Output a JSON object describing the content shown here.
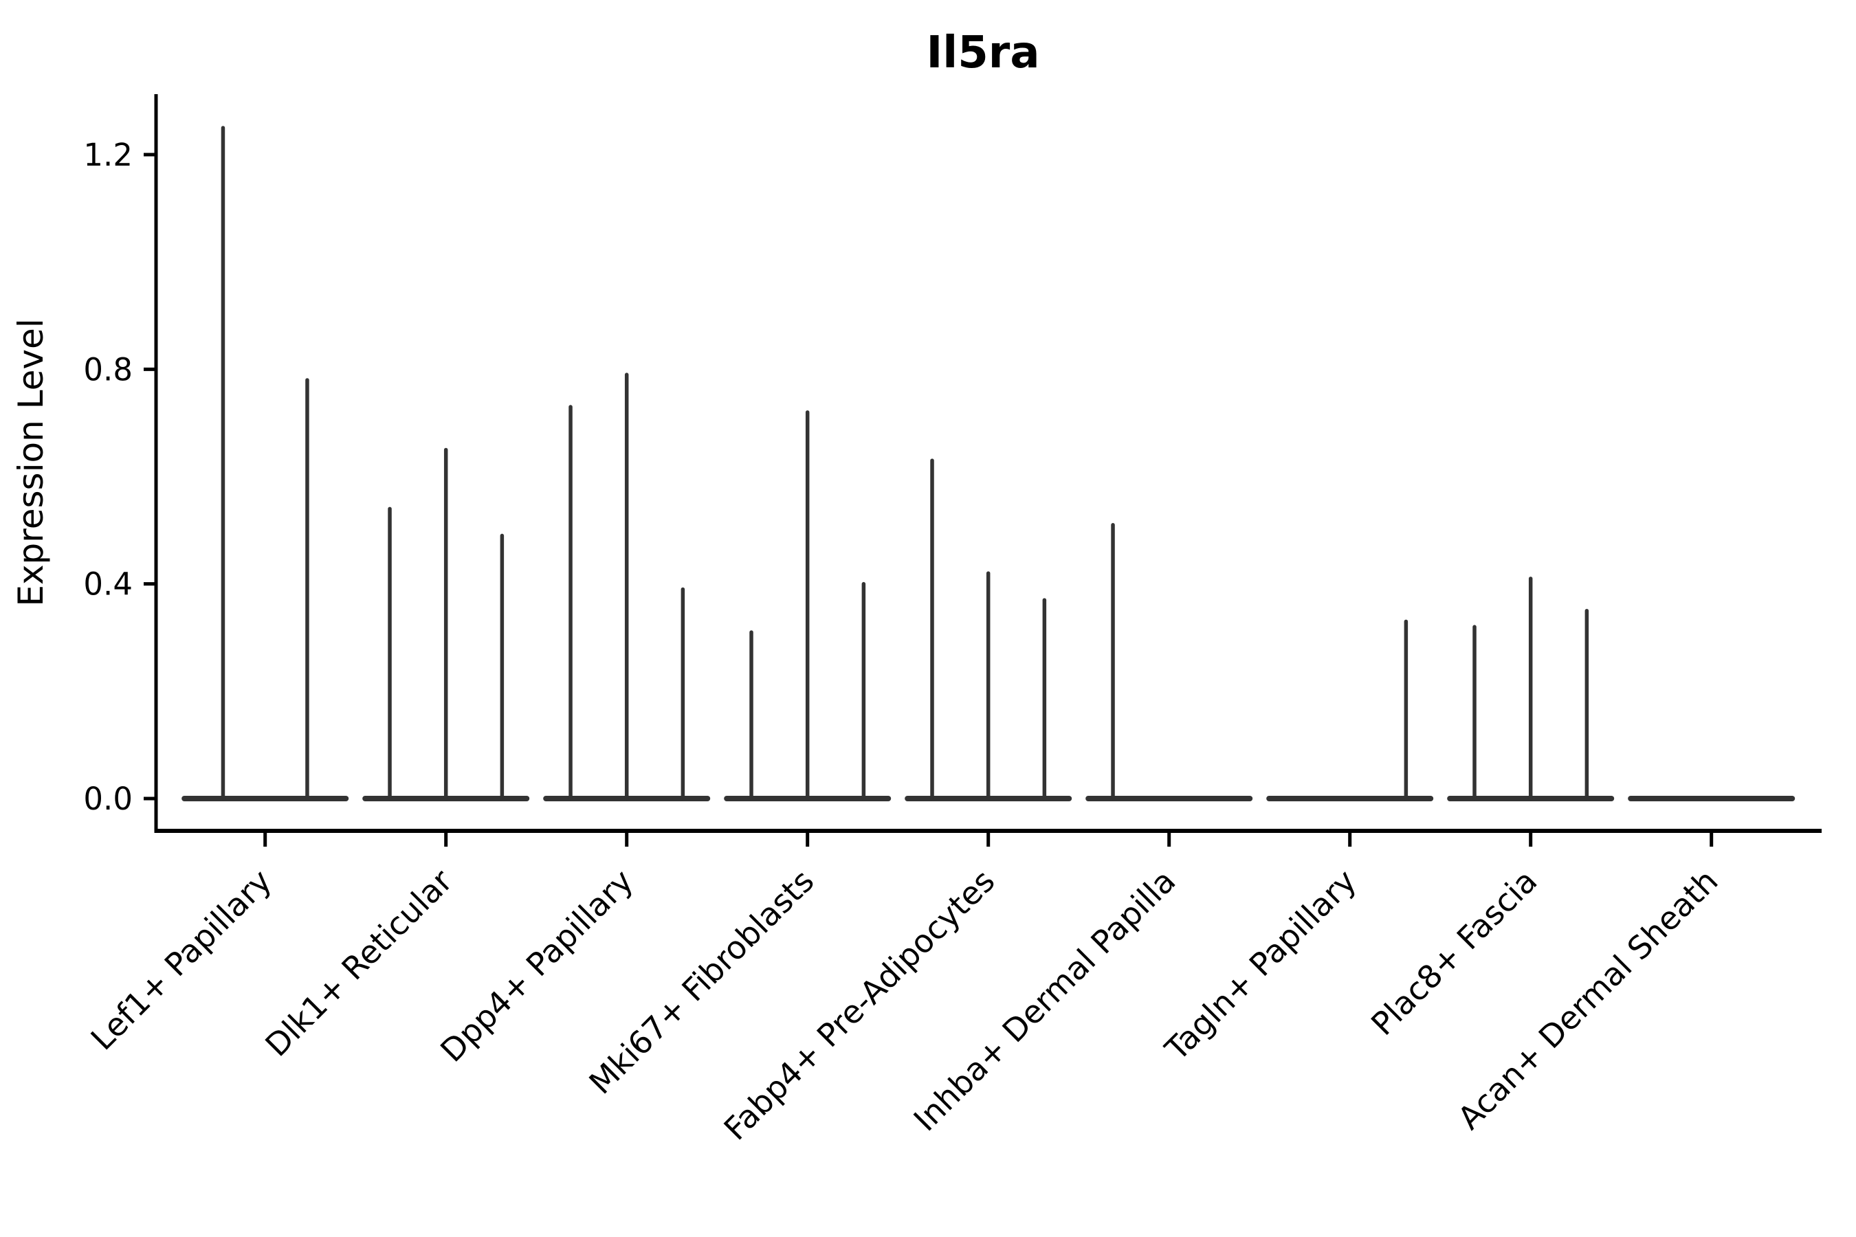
{
  "chart_data": {
    "type": "violin",
    "title": "Il5ra",
    "ylabel": "Expression Level",
    "xlabel": "",
    "grid": false,
    "legend": null,
    "background_color": "#ffffff",
    "violin_color": "#333333",
    "axis_color": "#000000",
    "ylim": [
      -0.06,
      1.31
    ],
    "yticks": [
      {
        "label": "0.0",
        "value": 0.0
      },
      {
        "label": "0.4",
        "value": 0.4
      },
      {
        "label": "0.8",
        "value": 0.8
      },
      {
        "label": "1.2",
        "value": 1.2
      }
    ],
    "categories": [
      "Lef1+ Papillary",
      "Dlk1+ Reticular",
      "Dpp4+ Papillary",
      "Mki67+ Fibroblasts",
      "Fabp4+ Pre-Adipocytes",
      "Inhba+ Dermal Papilla",
      "Tagln+ Papillary",
      "Plac8+ Fascia",
      "Acan+ Dermal Sheath"
    ],
    "groups": [
      {
        "category": "Lef1+ Papillary",
        "violin_max_values": [
          1.25,
          0.78
        ]
      },
      {
        "category": "Dlk1+ Reticular",
        "violin_max_values": [
          0.54,
          0.65,
          0.49
        ]
      },
      {
        "category": "Dpp4+ Papillary",
        "violin_max_values": [
          0.73,
          0.79,
          0.39
        ]
      },
      {
        "category": "Mki67+ Fibroblasts",
        "violin_max_values": [
          0.31,
          0.72,
          0.4
        ]
      },
      {
        "category": "Fabp4+ Pre-Adipocytes",
        "violin_max_values": [
          0.63,
          0.42,
          0.37
        ]
      },
      {
        "category": "Inhba+ Dermal Papilla",
        "violin_max_values": [
          0.51,
          0,
          0
        ]
      },
      {
        "category": "Tagln+ Papillary",
        "violin_max_values": [
          0,
          0,
          0.33
        ]
      },
      {
        "category": "Plac8+ Fascia",
        "violin_max_values": [
          0.32,
          0.41,
          0.35
        ]
      },
      {
        "category": "Acan+ Dermal Sheath",
        "violin_max_values": [
          0,
          0,
          0
        ]
      }
    ]
  }
}
